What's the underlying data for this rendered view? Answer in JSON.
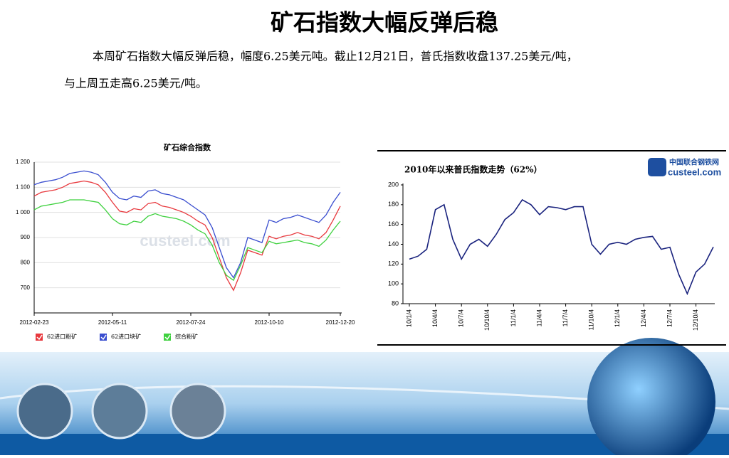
{
  "title": "矿石指数大幅反弹后稳",
  "paragraph": [
    "本周矿石指数大幅反弹后稳，幅度6.25美元吨。截止12月21日，普氏指数收盘137.25美元/吨，",
    "与上周五走高6.25美元/吨。"
  ],
  "logo": {
    "name": "中国联合钢铁网",
    "site": "custeel.com"
  },
  "chart_data": [
    {
      "type": "line",
      "title": "矿石综合指数",
      "grid": true,
      "legend": "bottom",
      "categories": [
        "2012-02-23",
        null,
        null,
        null,
        null,
        null,
        null,
        null,
        null,
        null,
        null,
        "2012-05-11",
        null,
        null,
        null,
        null,
        null,
        null,
        null,
        null,
        null,
        null,
        "2012-07-24",
        null,
        null,
        null,
        null,
        null,
        null,
        null,
        null,
        null,
        null,
        "2012-10-10",
        null,
        null,
        null,
        null,
        null,
        null,
        null,
        null,
        null,
        "2012-12-20"
      ],
      "ylim": [
        600,
        1200
      ],
      "yticks": [
        {
          "value": 700,
          "label": "700"
        },
        {
          "value": 800,
          "label": "800"
        },
        {
          "value": 900,
          "label": "900"
        },
        {
          "value": 1000,
          "label": "1 000"
        },
        {
          "value": 1100,
          "label": "1 100"
        },
        {
          "value": 1200,
          "label": "1 200"
        }
      ],
      "series": [
        {
          "name": "62进口粉矿",
          "color": "#e8383d",
          "values": [
            1065,
            1080,
            1085,
            1090,
            1100,
            1115,
            1120,
            1125,
            1120,
            1110,
            1080,
            1040,
            1005,
            1000,
            1015,
            1010,
            1035,
            1040,
            1025,
            1020,
            1010,
            1000,
            985,
            965,
            950,
            900,
            820,
            740,
            690,
            760,
            850,
            840,
            830,
            905,
            895,
            905,
            910,
            920,
            910,
            905,
            895,
            920,
            970,
            1025
          ]
        },
        {
          "name": "62进口块矿",
          "color": "#3a4ecf",
          "values": [
            1110,
            1120,
            1125,
            1130,
            1140,
            1155,
            1160,
            1165,
            1160,
            1150,
            1120,
            1080,
            1055,
            1050,
            1065,
            1060,
            1085,
            1090,
            1075,
            1070,
            1060,
            1050,
            1030,
            1010,
            990,
            940,
            860,
            780,
            740,
            800,
            900,
            890,
            880,
            970,
            960,
            975,
            980,
            990,
            980,
            970,
            960,
            990,
            1040,
            1080
          ]
        },
        {
          "name": "综合粉矿",
          "color": "#3fd13f",
          "values": [
            1010,
            1025,
            1030,
            1035,
            1040,
            1050,
            1050,
            1050,
            1045,
            1040,
            1010,
            975,
            955,
            950,
            965,
            960,
            985,
            995,
            985,
            980,
            975,
            965,
            950,
            930,
            915,
            870,
            800,
            750,
            730,
            790,
            860,
            850,
            840,
            885,
            875,
            880,
            885,
            890,
            880,
            875,
            865,
            890,
            930,
            965
          ]
        }
      ]
    },
    {
      "type": "line",
      "title": "2010年以来普氏指数走势（62%）",
      "grid": false,
      "categories": [
        "10/1/4",
        null,
        null,
        "10/4/4",
        null,
        null,
        "10/7/4",
        null,
        null,
        "10/10/4",
        null,
        null,
        "11/1/4",
        null,
        null,
        "11/4/4",
        null,
        null,
        "11/7/4",
        null,
        null,
        "11/10/4",
        null,
        null,
        "12/1/4",
        null,
        null,
        "12/4/4",
        null,
        null,
        "12/7/4",
        null,
        null,
        "12/10/4",
        null,
        null
      ],
      "ylim": [
        80,
        200
      ],
      "yticks": [
        80,
        100,
        120,
        140,
        160,
        180,
        200
      ],
      "series": [
        {
          "name": null,
          "color": "#1a237e",
          "values": [
            125,
            128,
            135,
            175,
            180,
            145,
            125,
            140,
            145,
            138,
            150,
            165,
            172,
            185,
            180,
            170,
            178,
            177,
            175,
            178,
            178,
            140,
            130,
            140,
            142,
            140,
            145,
            147,
            148,
            135,
            137,
            110,
            90,
            112,
            120,
            137.25
          ]
        }
      ]
    }
  ]
}
